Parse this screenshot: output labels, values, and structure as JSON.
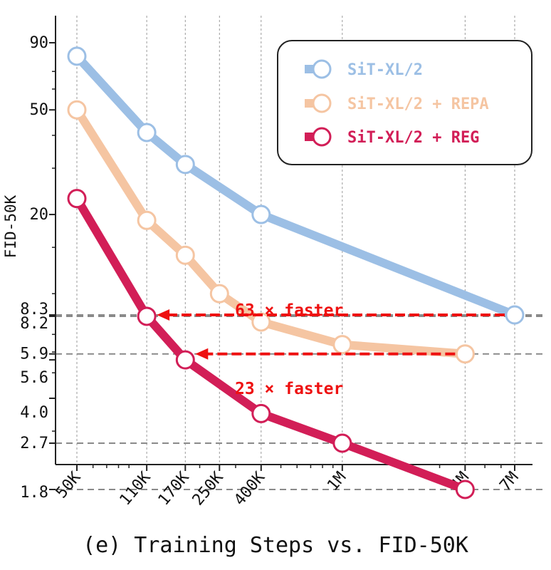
{
  "caption": "(e) Training Steps vs. FID-50K",
  "chart_data": {
    "type": "line",
    "title": "",
    "xlabel": "",
    "ylabel": "FID-50K",
    "x_ticks": [
      {
        "value": 50000,
        "label": "50K"
      },
      {
        "value": 110000,
        "label": "110K"
      },
      {
        "value": 170000,
        "label": "170K"
      },
      {
        "value": 250000,
        "label": "250K"
      },
      {
        "value": 400000,
        "label": "400K"
      },
      {
        "value": 1000000,
        "label": "1M"
      },
      {
        "value": 4000000,
        "label": "4M"
      },
      {
        "value": 7000000,
        "label": "7M"
      }
    ],
    "y_ticks": [
      "90",
      "50",
      "20",
      "8.3",
      "8.2",
      "5.9",
      "5.6",
      "4.0",
      "2.7",
      "1.8"
    ],
    "series": [
      {
        "name": "SiT-XL/2",
        "color": "#9cbfe5",
        "x": [
          50000,
          110000,
          170000,
          400000,
          7000000
        ],
        "y": [
          80,
          41,
          31,
          20,
          8.3
        ]
      },
      {
        "name": "SiT-XL/2 + REPA",
        "color": "#f5c5a2",
        "x": [
          50000,
          110000,
          170000,
          250000,
          400000,
          1000000,
          4000000
        ],
        "y": [
          50,
          19,
          14,
          10,
          7.8,
          6.4,
          5.9
        ]
      },
      {
        "name": "SiT-XL/2 + REG",
        "color": "#d21e57",
        "x": [
          50000,
          110000,
          170000,
          400000,
          1000000,
          4000000
        ],
        "y": [
          23,
          8.2,
          5.6,
          3.5,
          2.7,
          1.8
        ]
      }
    ],
    "reference_lines": [
      8.3,
      8.2,
      5.9,
      2.7,
      1.8
    ],
    "annotations": [
      {
        "text": "63 × faster",
        "color": "#ee1111",
        "from_x": 7000000,
        "to_x": 110000,
        "y": 8.3
      },
      {
        "text": "23 × faster",
        "color": "#ee1111",
        "from_x": 4000000,
        "to_x": 170000,
        "y": 5.9
      }
    ],
    "legend_position": "top-right"
  }
}
